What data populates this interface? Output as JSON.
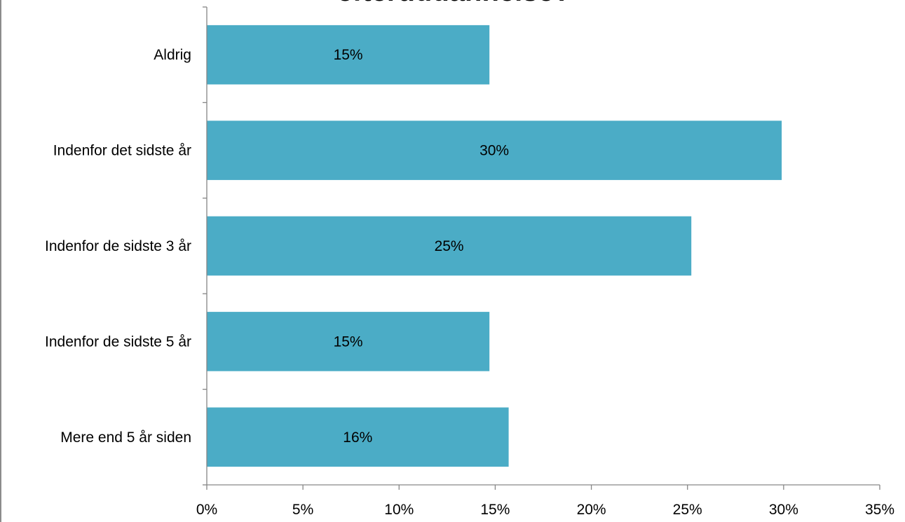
{
  "chart_data": {
    "type": "bar",
    "orientation": "horizontal",
    "title": "efteruddannelse?",
    "categories": [
      "Aldrig",
      "Indenfor det sidste år",
      "Indenfor de sidste 3 år",
      "Indenfor de sidste 5 år",
      "Mere end 5 år siden"
    ],
    "values": [
      14.7,
      29.9,
      25.2,
      14.7,
      15.7
    ],
    "data_labels": [
      "15%",
      "30%",
      "25%",
      "15%",
      "16%"
    ],
    "x_ticks": [
      "0%",
      "5%",
      "10%",
      "15%",
      "20%",
      "25%",
      "30%",
      "35%"
    ],
    "xlim": [
      0,
      35
    ],
    "xlabel": "",
    "ylabel": "",
    "grid": false,
    "legend": "none",
    "bar_color": "#4BACC6",
    "axis_color": "#868686"
  }
}
